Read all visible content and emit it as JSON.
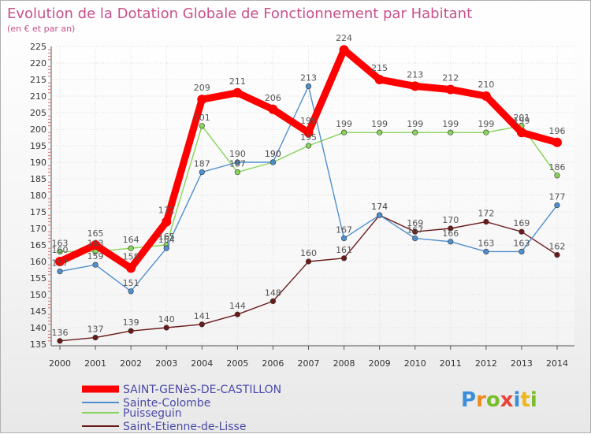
{
  "chart_data": {
    "type": "line",
    "title": "Evolution de la Dotation Globale de Fonctionnement par Habitant",
    "subtitle": "(en € et par an)",
    "xlabel": "",
    "ylabel": "",
    "x": [
      "2000",
      "2001",
      "2002",
      "2003",
      "2004",
      "2005",
      "2006",
      "2007",
      "2008",
      "2009",
      "2010",
      "2011",
      "2012",
      "2013",
      "2014"
    ],
    "ylim": [
      135,
      225
    ],
    "yticks": [
      135,
      140,
      145,
      150,
      155,
      160,
      165,
      170,
      175,
      180,
      185,
      190,
      195,
      200,
      205,
      210,
      215,
      220,
      225
    ],
    "grid": true,
    "legend_position": "bottom-left",
    "series": [
      {
        "name": "SAINT-GENèS-DE-CASTILLON",
        "color": "#ff0000",
        "values": [
          160,
          165,
          158,
          172,
          209,
          211,
          206,
          199,
          224,
          215,
          213,
          212,
          210,
          199,
          196
        ]
      },
      {
        "name": "Sainte-Colombe",
        "color": "#4f8fcf",
        "values": [
          157,
          159,
          151,
          164,
          187,
          190,
          190,
          213,
          167,
          174,
          167,
          166,
          163,
          163,
          177
        ]
      },
      {
        "name": "Puisseguin",
        "color": "#88d45a",
        "values": [
          163,
          163,
          164,
          165,
          201,
          187,
          190,
          195,
          199,
          199,
          199,
          199,
          199,
          201,
          186
        ]
      },
      {
        "name": "Saint-Etienne-de-Lisse",
        "color": "#6b1a1a",
        "values": [
          136,
          137,
          139,
          140,
          141,
          144,
          148,
          160,
          161,
          174,
          169,
          170,
          172,
          169,
          162
        ]
      }
    ]
  },
  "brand": {
    "letters": [
      "P",
      "r",
      "o",
      "x",
      "i",
      "t",
      "i"
    ],
    "colors": [
      "#3a8fd8",
      "#f08a1c",
      "#79bd2c",
      "#e8433a",
      "#3a8fd8",
      "#f0b41c",
      "#79bd2c"
    ]
  }
}
